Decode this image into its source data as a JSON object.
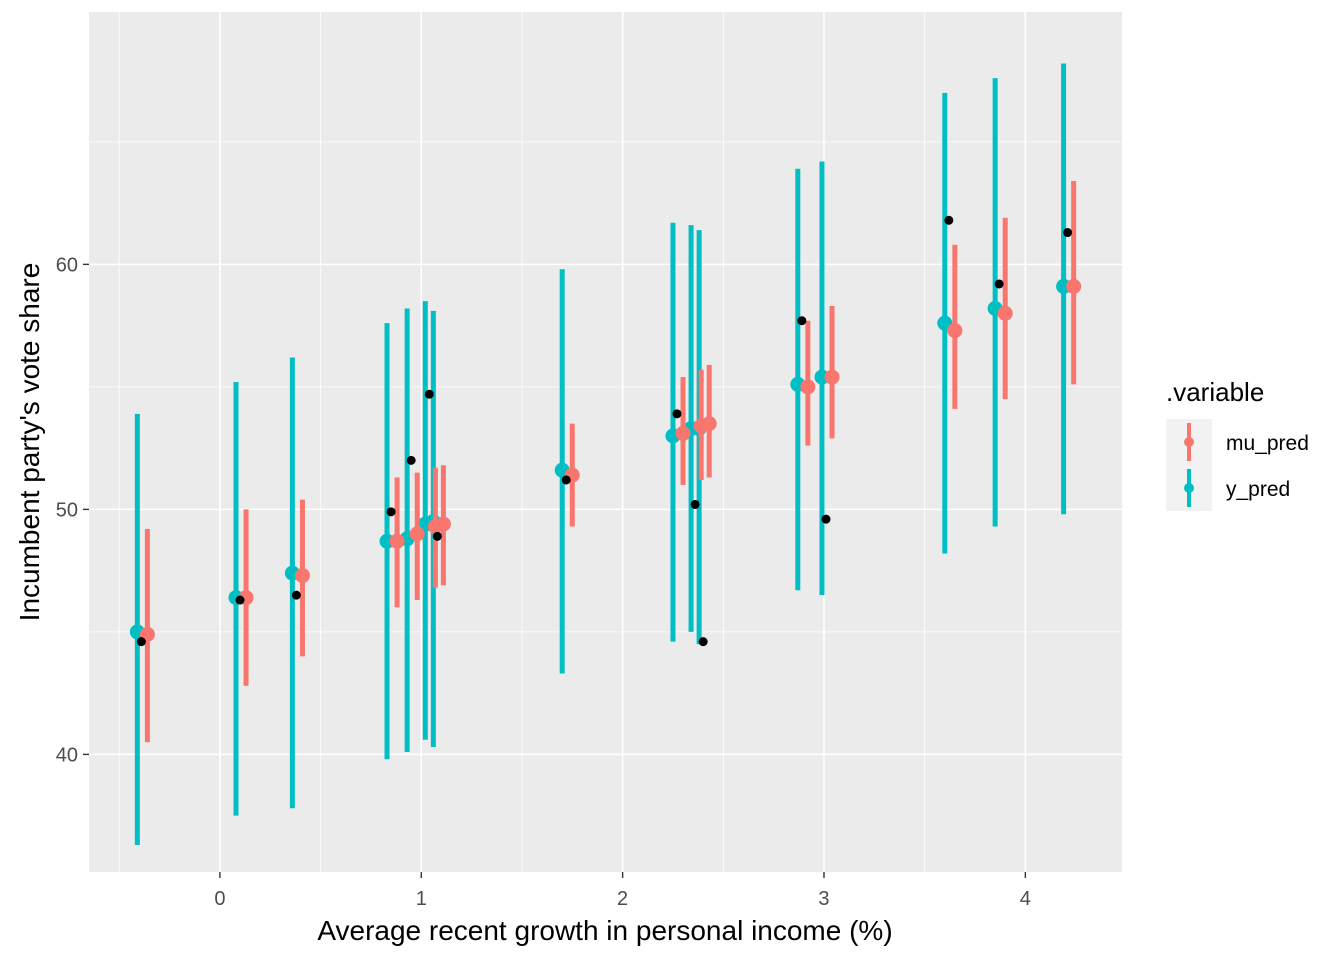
{
  "chart_data": {
    "type": "scatter",
    "xlabel": "Average recent growth in personal income (%)",
    "ylabel": "Incumbent party's vote share",
    "xlim": [
      -0.65,
      4.48
    ],
    "ylim": [
      35.2,
      70.3
    ],
    "xticks": [
      0,
      1,
      2,
      3,
      4
    ],
    "yticks": [
      40,
      50,
      60
    ],
    "xtick_labels": [
      "0",
      "1",
      "2",
      "3",
      "4"
    ],
    "ytick_labels": [
      "40",
      "50",
      "60"
    ],
    "grid": true,
    "legend": {
      "title": ".variable",
      "placement": "right",
      "entries": [
        "mu_pred",
        "y_pred"
      ]
    },
    "colors": {
      "mu_pred": "#F8766D",
      "y_pred": "#00BFC4",
      "observed": "#000000",
      "panel": "#EBEBEB",
      "grid": "#FFFFFF"
    },
    "series": [
      {
        "name": "y_pred",
        "x": [
          -0.41,
          0.08,
          0.36,
          0.83,
          0.93,
          1.02,
          1.06,
          1.7,
          2.25,
          2.34,
          2.38,
          2.87,
          2.99,
          3.6,
          3.85,
          4.19
        ],
        "y": [
          45.0,
          46.4,
          47.4,
          48.7,
          48.8,
          49.4,
          49.5,
          51.6,
          53.0,
          53.3,
          53.3,
          55.1,
          55.4,
          57.6,
          58.2,
          59.1
        ],
        "lower": [
          36.3,
          37.5,
          37.8,
          39.8,
          40.1,
          40.6,
          40.3,
          43.3,
          44.6,
          45.0,
          44.5,
          46.7,
          46.5,
          48.2,
          49.3,
          49.8
        ],
        "upper": [
          53.9,
          55.2,
          56.2,
          57.6,
          58.2,
          58.5,
          58.1,
          59.8,
          61.7,
          61.6,
          61.4,
          63.9,
          64.2,
          67.0,
          67.6,
          68.2
        ]
      },
      {
        "name": "mu_pred",
        "x": [
          -0.36,
          0.13,
          0.41,
          0.88,
          0.98,
          1.07,
          1.11,
          1.75,
          2.3,
          2.39,
          2.43,
          2.92,
          3.04,
          3.65,
          3.9,
          4.24
        ],
        "y": [
          44.9,
          46.4,
          47.3,
          48.7,
          49.0,
          49.3,
          49.4,
          51.4,
          53.1,
          53.4,
          53.5,
          55.0,
          55.4,
          57.3,
          58.0,
          59.1
        ],
        "lower": [
          40.5,
          42.8,
          44.0,
          46.0,
          46.3,
          46.8,
          46.9,
          49.3,
          51.0,
          51.2,
          51.3,
          52.6,
          52.9,
          54.1,
          54.5,
          55.1
        ],
        "upper": [
          49.2,
          50.0,
          50.4,
          51.3,
          51.5,
          51.7,
          51.8,
          53.5,
          55.4,
          55.7,
          55.9,
          57.7,
          58.3,
          60.8,
          61.9,
          63.4
        ]
      }
    ],
    "observed": {
      "x": [
        -0.39,
        0.1,
        0.38,
        0.85,
        0.95,
        1.04,
        1.08,
        1.72,
        2.27,
        2.36,
        2.4,
        2.89,
        3.01,
        3.62,
        3.87,
        4.21
      ],
      "y": [
        44.6,
        46.3,
        46.5,
        49.9,
        52.0,
        54.7,
        48.9,
        51.2,
        53.9,
        50.2,
        44.6,
        57.7,
        49.6,
        61.8,
        59.2,
        61.3
      ]
    }
  }
}
